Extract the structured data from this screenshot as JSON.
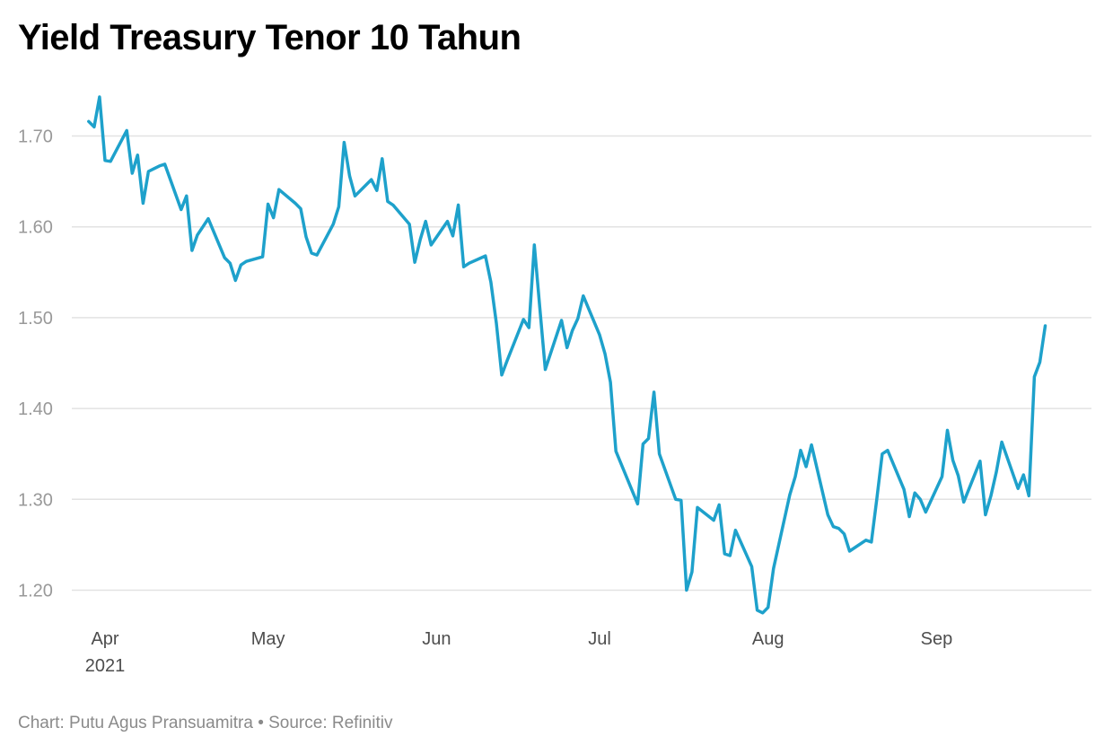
{
  "header": {
    "title": "Yield Treasury Tenor 10 Tahun"
  },
  "chart_data": {
    "type": "line",
    "title": "Yield Treasury Tenor 10 Tahun",
    "xlabel": "",
    "ylabel": "",
    "ylim": [
      1.17,
      1.75
    ],
    "grid": true,
    "color": "#1ea1cb",
    "y_ticks": [
      1.2,
      1.3,
      1.4,
      1.5,
      1.6,
      1.7
    ],
    "y_tick_labels": [
      "1.20",
      "1.30",
      "1.40",
      "1.50",
      "1.60",
      "1.70"
    ],
    "x_ticks": [
      {
        "label": "Apr",
        "sublabel": "2021",
        "day": 0
      },
      {
        "label": "May",
        "sublabel": "",
        "day": 30
      },
      {
        "label": "Jun",
        "sublabel": "",
        "day": 61
      },
      {
        "label": "Jul",
        "sublabel": "",
        "day": 91
      },
      {
        "label": "Aug",
        "sublabel": "",
        "day": 122
      },
      {
        "label": "Sep",
        "sublabel": "",
        "day": 153
      }
    ],
    "series": [
      {
        "name": "Yield",
        "x": [
          -3,
          -2,
          -1,
          0,
          1,
          4,
          5,
          6,
          7,
          8,
          9,
          10,
          11,
          14,
          15,
          16,
          17,
          18,
          19,
          22,
          23,
          24,
          25,
          26,
          29,
          30,
          31,
          32,
          35,
          36,
          37,
          38,
          39,
          42,
          43,
          44,
          45,
          46,
          49,
          50,
          51,
          52,
          53,
          56,
          57,
          58,
          59,
          60,
          63,
          64,
          65,
          66,
          67,
          70,
          71,
          72,
          73,
          74,
          77,
          78,
          79,
          80,
          81,
          84,
          85,
          86,
          87,
          88,
          91,
          92,
          93,
          94,
          98,
          99,
          100,
          101,
          102,
          105,
          106,
          107,
          108,
          109,
          112,
          113,
          114,
          115,
          116,
          119,
          120,
          121,
          122,
          123,
          126,
          127,
          128,
          129,
          130,
          133,
          134,
          135,
          136,
          137,
          140,
          141,
          142,
          143,
          144,
          147,
          148,
          149,
          150,
          151,
          154,
          155,
          156,
          157,
          158,
          161,
          162,
          163,
          164,
          165,
          168,
          169,
          170,
          171,
          172,
          173
        ],
        "values": [
          1.716,
          1.71,
          1.743,
          1.673,
          1.672,
          1.706,
          1.659,
          1.679,
          1.626,
          1.661,
          1.664,
          1.667,
          1.669,
          1.619,
          1.634,
          1.574,
          1.591,
          1.6,
          1.609,
          1.566,
          1.56,
          1.541,
          1.558,
          1.562,
          1.567,
          1.625,
          1.61,
          1.641,
          1.626,
          1.62,
          1.589,
          1.571,
          1.569,
          1.603,
          1.622,
          1.693,
          1.656,
          1.634,
          1.652,
          1.64,
          1.675,
          1.628,
          1.624,
          1.603,
          1.561,
          1.586,
          1.606,
          1.58,
          1.606,
          1.59,
          1.624,
          1.556,
          1.56,
          1.568,
          1.539,
          1.494,
          1.437,
          1.453,
          1.498,
          1.489,
          1.58,
          1.511,
          1.443,
          1.497,
          1.467,
          1.486,
          1.499,
          1.524,
          1.481,
          1.46,
          1.429,
          1.353,
          1.295,
          1.361,
          1.367,
          1.418,
          1.35,
          1.3,
          1.299,
          1.2,
          1.22,
          1.291,
          1.277,
          1.294,
          1.24,
          1.238,
          1.266,
          1.226,
          1.178,
          1.175,
          1.181,
          1.224,
          1.305,
          1.325,
          1.354,
          1.336,
          1.36,
          1.283,
          1.27,
          1.268,
          1.262,
          1.243,
          1.255,
          1.253,
          1.3,
          1.35,
          1.354,
          1.311,
          1.281,
          1.307,
          1.3,
          1.286,
          1.325,
          1.376,
          1.343,
          1.326,
          1.297,
          1.342,
          1.283,
          1.304,
          1.33,
          1.363,
          1.312,
          1.327,
          1.304,
          1.435,
          1.451,
          1.491
        ]
      }
    ]
  },
  "footer": {
    "credit": "Chart: Putu Agus Pransuamitra • Source: Refinitiv"
  }
}
